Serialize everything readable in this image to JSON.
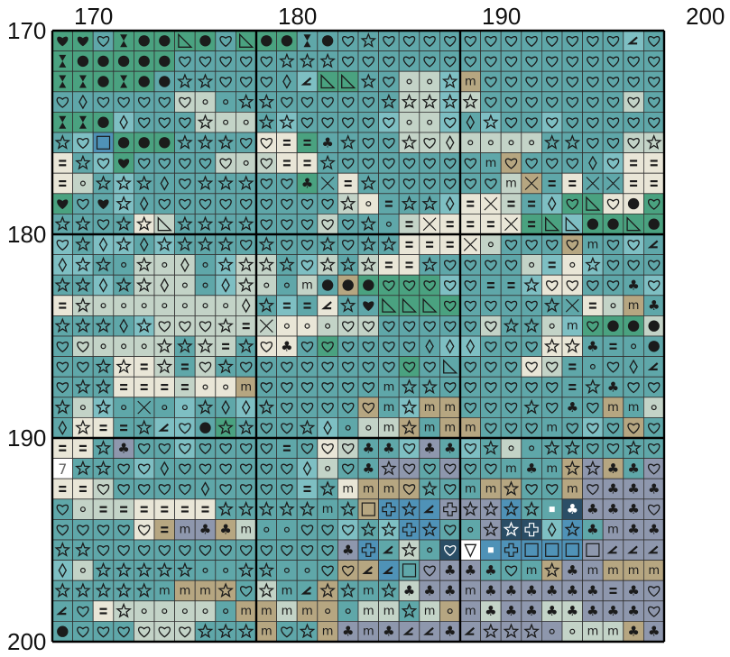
{
  "axis_labels": {
    "x": [
      "170",
      "180",
      "190",
      "200"
    ],
    "y": [
      "170",
      "180",
      "190",
      "200"
    ]
  },
  "colors": {
    "teal": "#5fa7a9",
    "teal_light": "#7ebfc3",
    "sage": "#c3d3c7",
    "cream": "#e9e6d7",
    "tan": "#b6a681",
    "green": "#4aa280",
    "gray": "#8e97ad",
    "blue": "#4f92b7",
    "navy": "#2b4e66",
    "white": "#ffffff",
    "grid_line": "#333333",
    "major_line": "#000000"
  },
  "symbols": {
    "H": "heart-solid",
    "h": "heart-outline",
    "s": "star-outline",
    "o": "small-circle",
    "D": "filled-dot",
    "d": "diamond-outline",
    "e": "equals-bars",
    "X": "x-cross",
    "T": "hourglass",
    "m": "letter-m",
    "c": "club",
    "t": "right-triangle",
    "n": "angle-mark",
    "q": "square-outline",
    "p": "plus-outline",
    "v": "down-triangle",
    "w": "white-square",
    "7": "digit-seven"
  },
  "chart_data": {
    "type": "heatmap",
    "title": "",
    "x_start": 170,
    "y_start": 170,
    "columns": 30,
    "rows": 30,
    "major_every": 10,
    "legend_color_codes": {
      "t": "teal",
      "l": "teal_light",
      "g": "sage",
      "c": "cream",
      "b": "tan",
      "G": "green",
      "a": "gray",
      "B": "blue",
      "N": "navy",
      "W": "white"
    },
    "color_rows": [
      "GGtGGGGGtGGGttttttttttttttttlt",
      "GGGGGGtttttttttttttttttttttttt",
      "GGGGGtttttttlGGttgglbttttttttt",
      "ttttttggtttttttttgglgtttttttgt",
      "GGGltttgggtlttttlggltlttlttttt",
      "tlBGGGttttccGttttgggggggttttgg",
      "ctlGttttgggcctttttttttbttttlcc",
      "cgtlttttttttGXctttttttgbXcXXccG",
      "GttlttttttttttgctttlccgtlGGccG",
      "ttttcgtttttttgtttgcccccGGlGGGGG",
      "ltlltltttttttttttcccc gtttbttl",
      "llttgggtlggtlgtgcctttttglcltttl",
      "ttltgggtlggtgtbGGGGltttlcctttl",
      "cgggggggggtltcttGGGGttttttc gbtl",
      "ttttlggggggccgggtttttgttglGGGg",
      "tgggggtggtcctGtttttlltttcctttt",
      "tttccgtgtttttttttGtttttcgttttt",
      "tttcccgccbtttttttttttttttttttt",
      "tgltXtlttltttttbtlbbtttttttbtgt",
      "dccttlltGttttltggbtbbtttttltbtt",
      "cctattlttttttcgttlatltgttttttt",
      "Wtttltttttttlgttaatatttttbabtaa",
      "ccgtttttttttltcbbbtttbbttbaaaaa",
      "tgggcccctttttttbBBBaaaBttNaaaaa",
      "ttttcbaabgttttltlBBttaNNlBtaaaa",
      "ttttttttttttttaBtgtNWBBBBBaaaaa",
      "lgttttttttttttbbBtaaatttbaabbbb",
      "ttttttbbbtgttbtttgaaaaaaaaaaaa",
      "ntcgggggtbbgbbtggtgbagaaggaaaaa",
      "Dtttgggtttbttbaaaaaaaaaaagggbaa"
    ],
    "symbol_rows": [
      "HHhTDDtDhtDDTDhshhhhhhhhhhhhnh",
      "TDDDDDhhhhhssshhhhhhhhhhhhhhhh",
      "TTDTDDsshhhdnttshoosmhhhhhhhhhh",
      "hdhhhhhoosshhhhhssssshhhhhhhhh",
      "TTDdhhhsoosshhhhhoohdshhhhhhhh",
      "shqDDDssshheecshhshdoooosshhhso",
      "eshHhhhhhoheeshhhhhhhmhhhhdhee",
      "eosssdhssshhcXeshhhhhhmXeeXXeeD",
      "HhHsdhhhhhhhhhsoessdeXeedhthD",
      "sshsstsssshhhhhsoeXeeeXettDDtDD",
      "hsdsdsssshshhshsseeeXohhhhmhhn",
      "dssosodosssshssseeshhhhoeoshhhhn",
      "ssdssdoodsoomDDDhhhhheeshhhhc",
      "esooooooodseensHttthhhhhsXeomcho",
      "sssdshhhseXooohhhhhhhhssomhDDDho",
      "hhooossseshchhhhhhdddhhhssceoDDDDh",
      "hhssesehshhhhhhhhhhthhhhheohdnDh",
      "hsseeeeoomhhhhhhmsshhhhhhesch",
      "sosoXoosddshhhhhmsmmhhhshchmmos",
      "dseesnhDsshhsdoomsmmmhhhmhhhhhss",
      "eeschhhhhhhehhhcchcchsoosshhs",
      "7sshhdhhhhhhdohcshhhhhmcmsscc",
      "eehhhhhdhhhhesmmmhshmmshhmhcccc",
      "hoeeeeeesssssmsqpsnpsssswcccc",
      "hhhhhemccmoohhhsspshosspdscmcccc",
      "sshhhhhhhhhhhhcpnsohvwpqqqqnnnc",
      "dosssssoossoohhnnqhccchmscmmmmm",
      "sssssmmmshsmnssmscccmccccccec",
      "nhesooooommmmoommsmomcccccccc",
      "Dhhhhhhsssmhsmcmcnncnsssoommcc"
    ]
  }
}
